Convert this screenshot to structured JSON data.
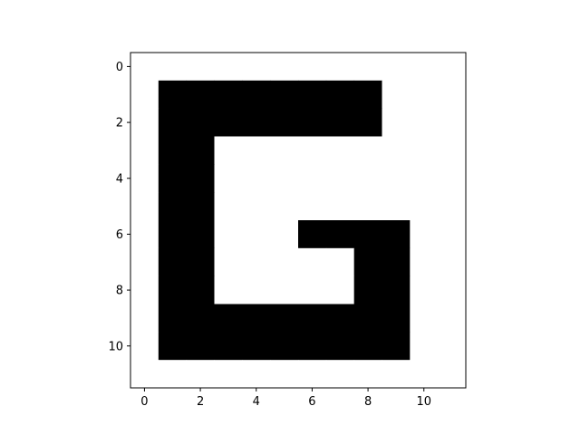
{
  "chart_data": {
    "type": "heatmap",
    "title": "",
    "xlabel": "",
    "ylabel": "",
    "rows": 12,
    "cols": 12,
    "x_range": [
      -0.5,
      11.5
    ],
    "y_range": [
      11.5,
      -0.5
    ],
    "y_inverted": true,
    "colormap": {
      "0": "#ffffff",
      "1": "#000000"
    },
    "x_ticks": [
      0,
      2,
      4,
      6,
      8,
      10
    ],
    "y_ticks": [
      0,
      2,
      4,
      6,
      8,
      10
    ],
    "x_tick_labels": [
      "0",
      "2",
      "4",
      "6",
      "8",
      "10"
    ],
    "y_tick_labels": [
      "0",
      "2",
      "4",
      "6",
      "8",
      "10"
    ],
    "grid": false,
    "legend": "none",
    "matrix": [
      [
        0,
        0,
        0,
        0,
        0,
        0,
        0,
        0,
        0,
        0,
        0,
        0
      ],
      [
        0,
        1,
        1,
        1,
        1,
        1,
        1,
        1,
        1,
        0,
        0,
        0
      ],
      [
        0,
        1,
        1,
        1,
        1,
        1,
        1,
        1,
        1,
        0,
        0,
        0
      ],
      [
        0,
        1,
        1,
        0,
        0,
        0,
        0,
        0,
        0,
        0,
        0,
        0
      ],
      [
        0,
        1,
        1,
        0,
        0,
        0,
        0,
        0,
        0,
        0,
        0,
        0
      ],
      [
        0,
        1,
        1,
        0,
        0,
        0,
        0,
        0,
        0,
        0,
        0,
        0
      ],
      [
        0,
        1,
        1,
        0,
        0,
        0,
        1,
        1,
        1,
        1,
        0,
        0
      ],
      [
        0,
        1,
        1,
        0,
        0,
        0,
        0,
        0,
        1,
        1,
        0,
        0
      ],
      [
        0,
        1,
        1,
        0,
        0,
        0,
        0,
        0,
        1,
        1,
        0,
        0
      ],
      [
        0,
        1,
        1,
        1,
        1,
        1,
        1,
        1,
        1,
        1,
        0,
        0
      ],
      [
        0,
        1,
        1,
        1,
        1,
        1,
        1,
        1,
        1,
        1,
        0,
        0
      ],
      [
        0,
        0,
        0,
        0,
        0,
        0,
        0,
        0,
        0,
        0,
        0,
        0
      ]
    ]
  }
}
